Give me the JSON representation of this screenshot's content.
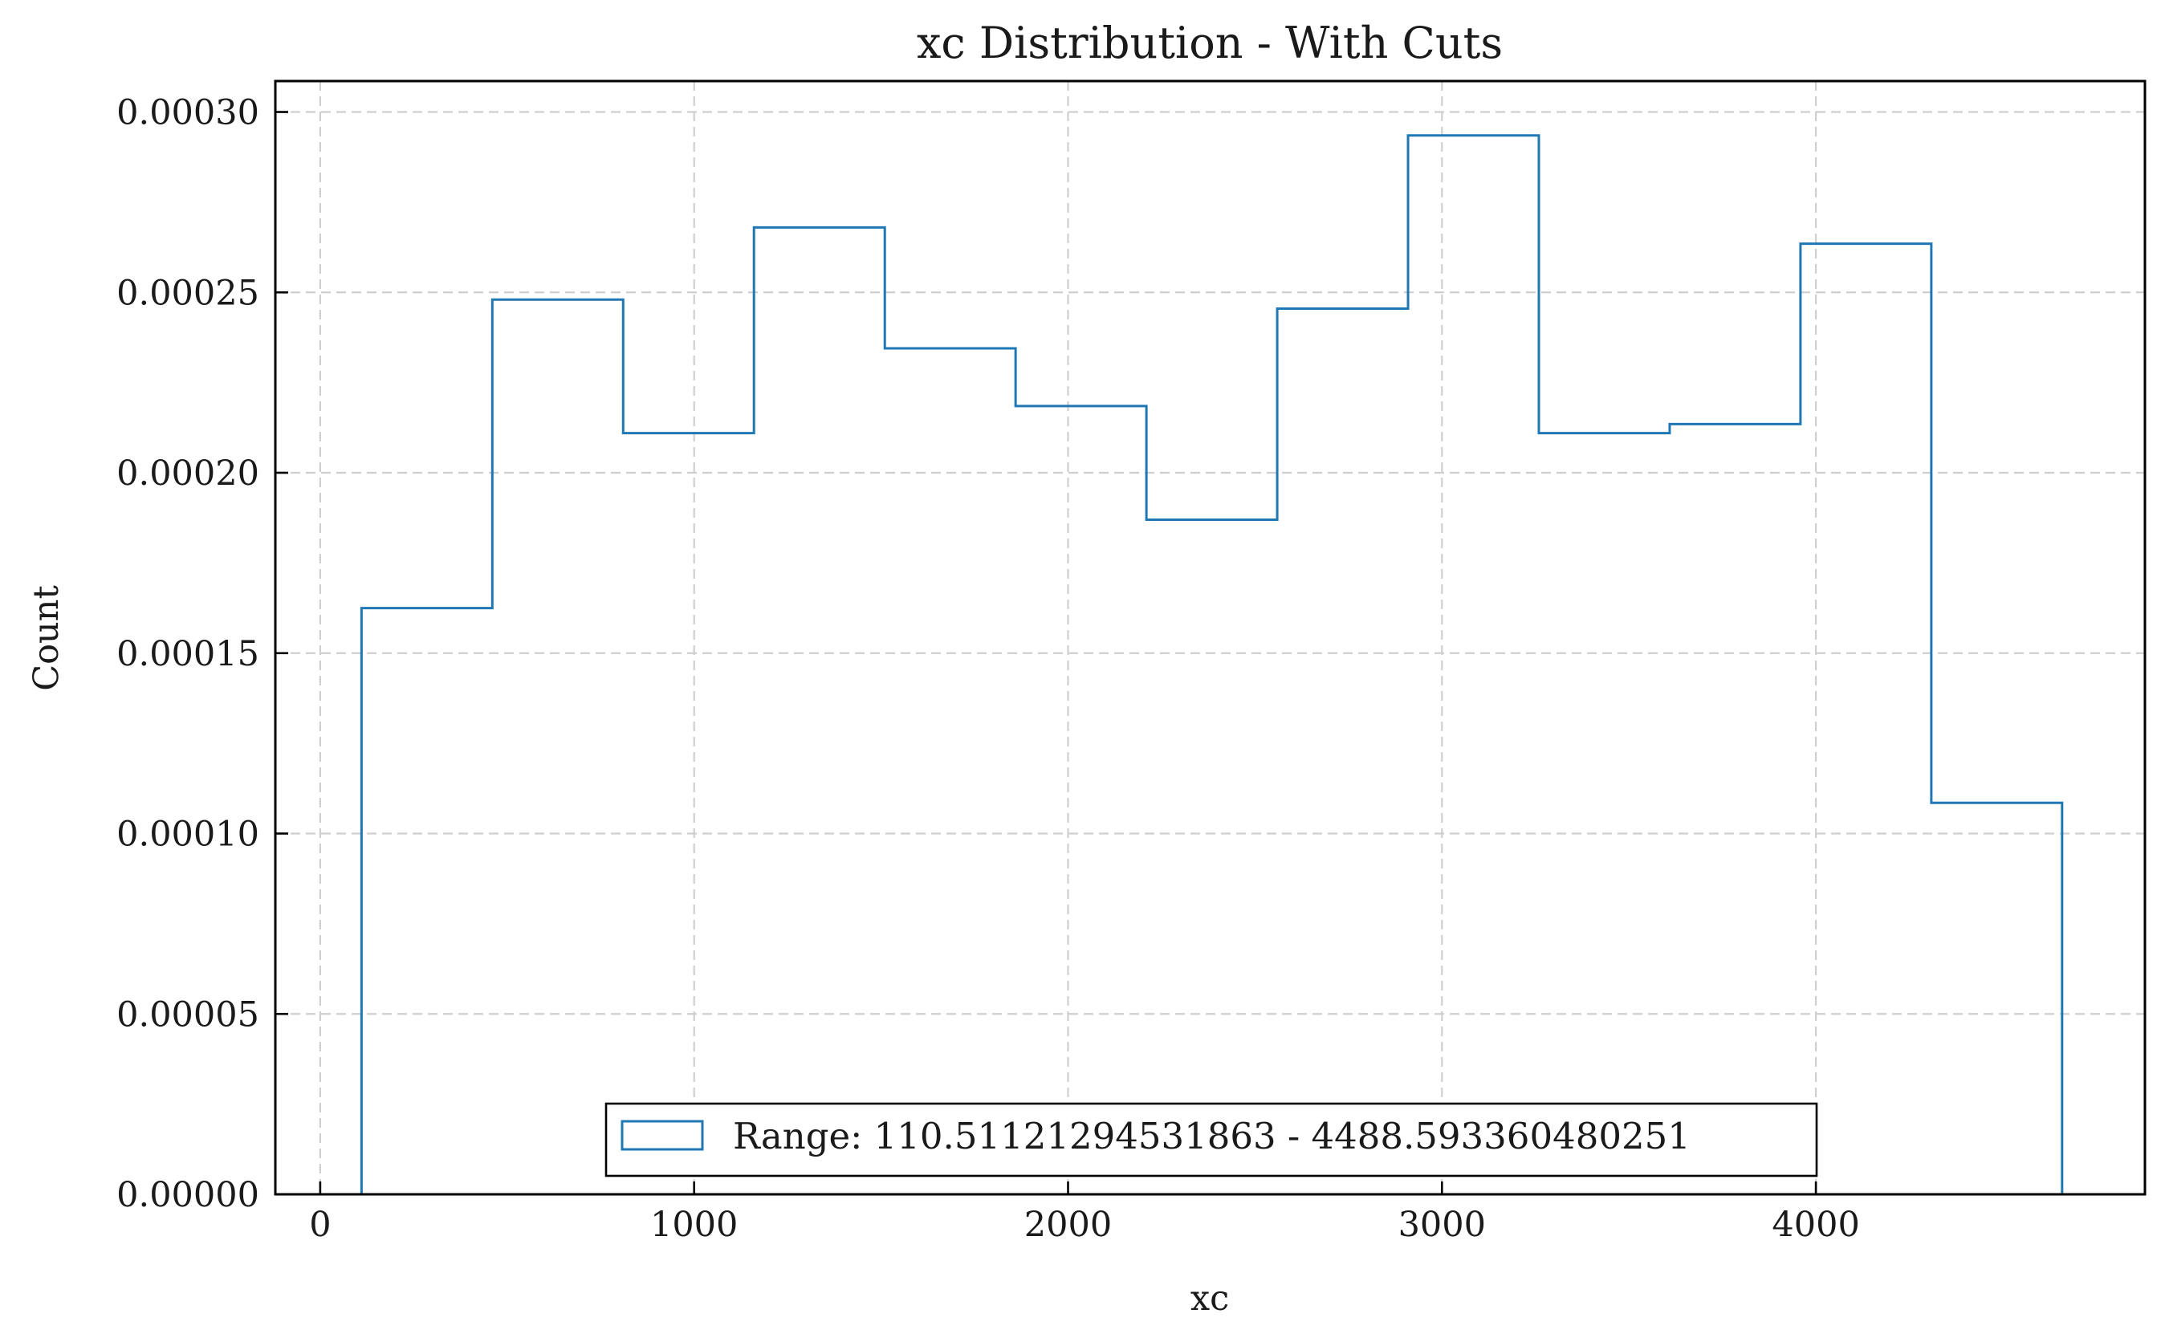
{
  "chart_data": {
    "type": "histogram",
    "title": "xc Distribution - With Cuts",
    "xlabel": "xc",
    "ylabel": "Count",
    "xlim": [
      -120,
      4880
    ],
    "ylim": [
      0,
      0.00030857
    ],
    "x_ticks": [
      0,
      1000,
      2000,
      3000,
      4000
    ],
    "x_tick_labels": [
      "0",
      "1000",
      "2000",
      "3000",
      "4000"
    ],
    "y_ticks": [
      0,
      5e-05,
      0.0001,
      0.00015,
      0.0002,
      0.00025,
      0.0003
    ],
    "y_tick_labels": [
      "0.00000",
      "0.00005",
      "0.00010",
      "0.00015",
      "0.00020",
      "0.00025",
      "0.00030"
    ],
    "grid": true,
    "legend_position": "lower center",
    "bin_edges": [
      110.5,
      460.3,
      810.2,
      1160.0,
      1509.9,
      1859.7,
      2209.6,
      2559.4,
      2909.3,
      3259.1,
      3609.0,
      3958.8,
      4308.7,
      4658.5
    ],
    "series": [
      {
        "name": "Range: 110.51121294531863 - 4488.593360480251",
        "color": "#1f77b4",
        "values": [
          0.0001625,
          0.000248,
          0.000211,
          0.000268,
          0.0002345,
          0.0002185,
          0.000187,
          0.0002455,
          0.0002935,
          0.000211,
          0.0002135,
          0.0002635,
          0.0001085
        ]
      }
    ]
  }
}
